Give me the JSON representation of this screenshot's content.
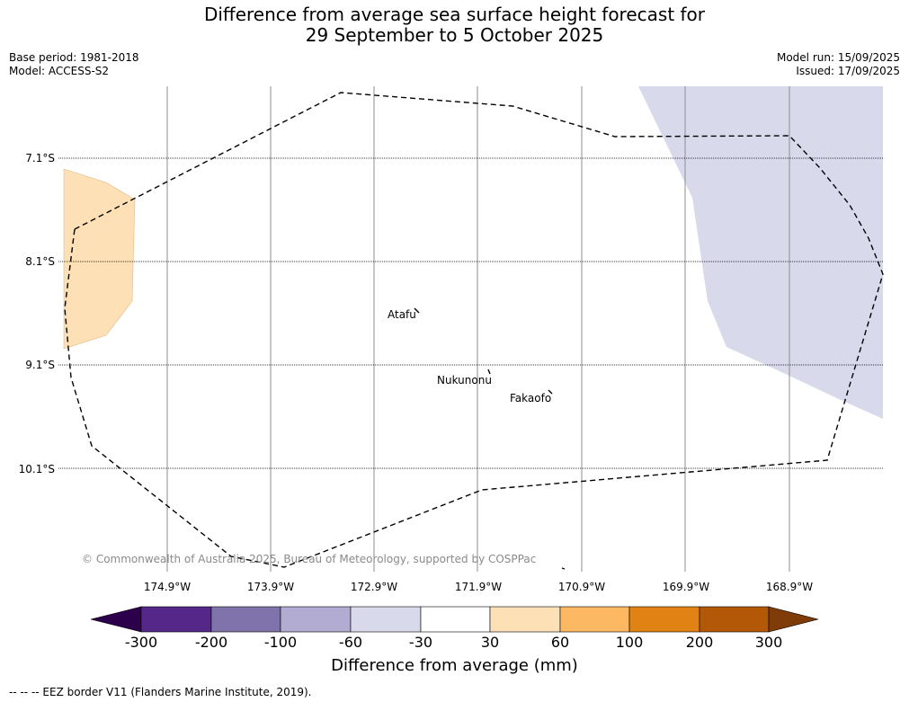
{
  "title": {
    "line1": "Difference from average sea surface height forecast for",
    "line2": "29 September to 5 October 2025"
  },
  "meta_left": {
    "base_period": "Base period: 1981-2018",
    "model": "Model: ACCESS-S2"
  },
  "meta_right": {
    "model_run": "Model run: 15/09/2025",
    "issued": "Issued: 17/09/2025"
  },
  "map": {
    "latitude_labels": [
      "7.1°S",
      "8.1°S",
      "9.1°S",
      "10.1°S"
    ],
    "longitude_labels": [
      "174.9°W",
      "173.9°W",
      "172.9°W",
      "171.9°W",
      "170.9°W",
      "169.9°W",
      "168.9°W"
    ],
    "places": [
      {
        "name": "Atafu"
      },
      {
        "name": "Nukunonu"
      },
      {
        "name": "Fakaofo"
      }
    ],
    "anomaly_regions": [
      {
        "category": "30 to 60",
        "color": "#fee0b6"
      },
      {
        "category": "-60 to -30",
        "color": "#d8daeb"
      }
    ],
    "eez_border_style": "dashed",
    "copyright": "© Commonwealth of Australia 2025, Bureau of Meteorology, supported by COSPPac"
  },
  "colorbar": {
    "ticks": [
      "-300",
      "-200",
      "-100",
      "-60",
      "-30",
      "30",
      "60",
      "100",
      "200",
      "300"
    ],
    "colors": [
      "#542788",
      "#8073ac",
      "#b2abd2",
      "#d8daeb",
      "#ffffff",
      "#fee0b6",
      "#fdb863",
      "#e08214",
      "#b35806"
    ],
    "under_color": "#2d004b",
    "over_color": "#7f3b08",
    "label": "Difference from average (mm)"
  },
  "footer": {
    "legend_text": "--  --  -- EEZ border V11 (Flanders Marine Institute, 2019)."
  }
}
